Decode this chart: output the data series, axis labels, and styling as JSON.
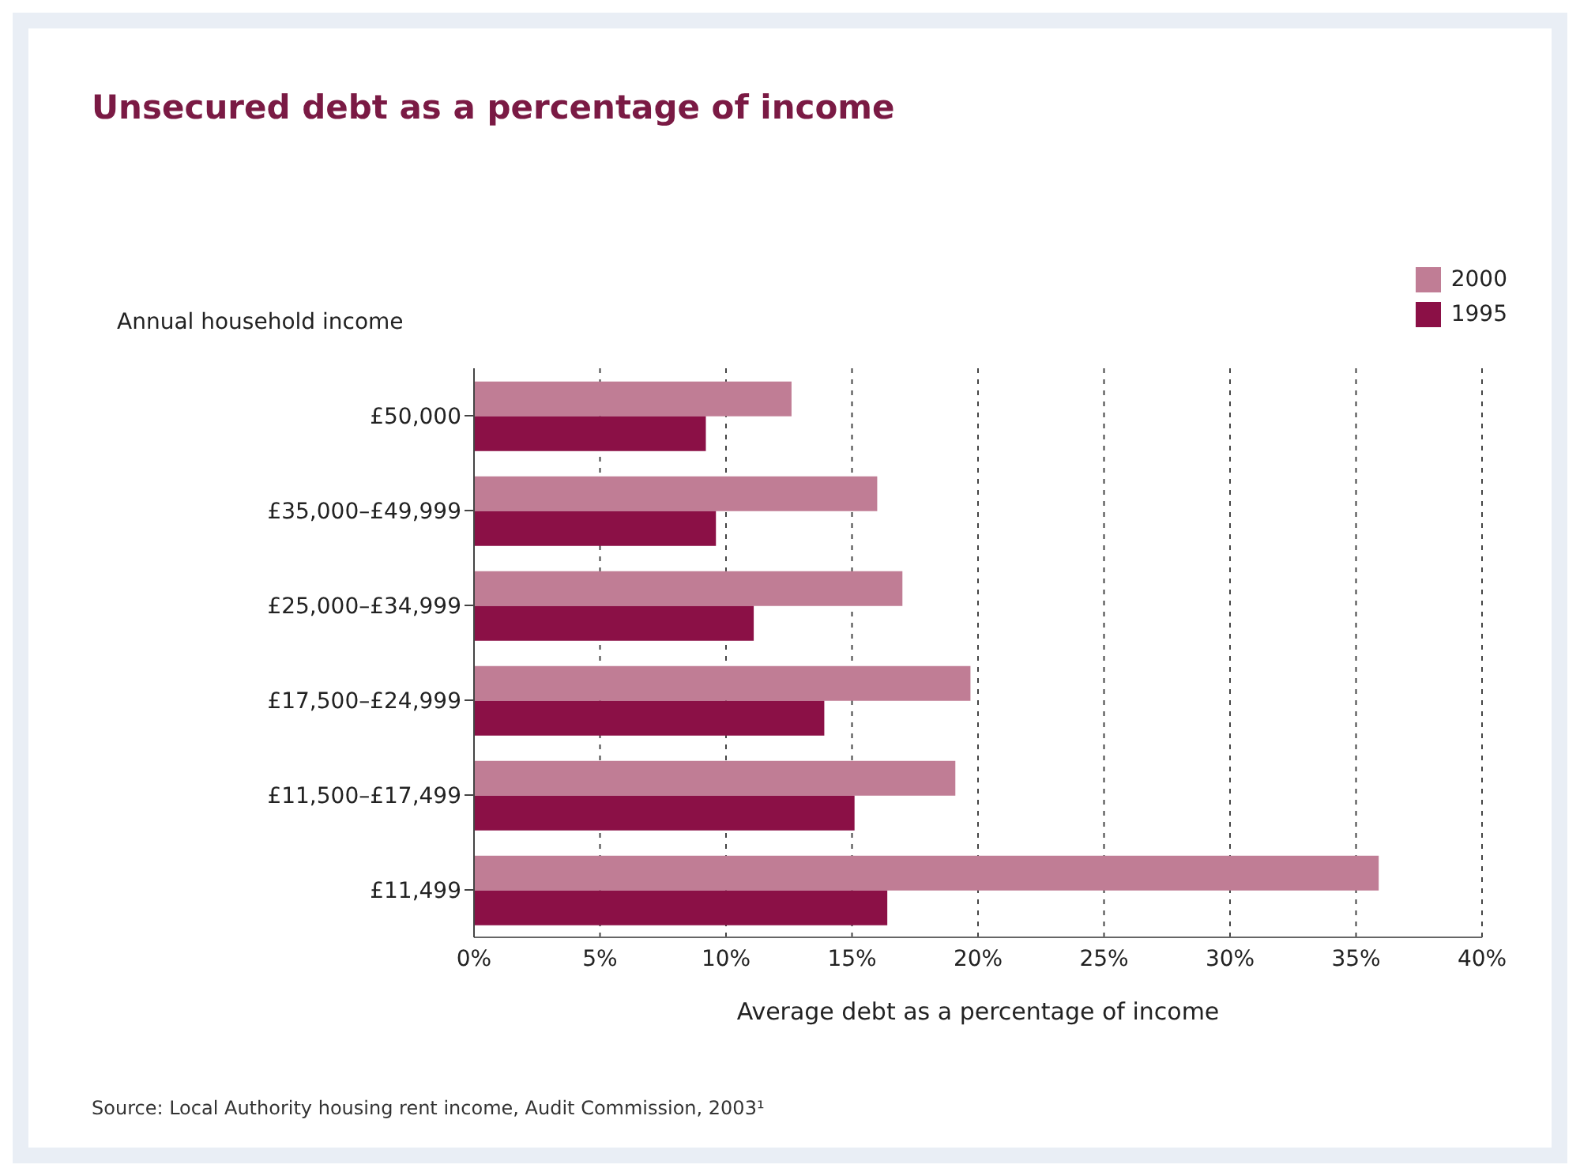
{
  "chart_data": {
    "type": "bar",
    "orientation": "horizontal",
    "title": "Unsecured debt as a percentage of income",
    "ylabel": "Annual household income",
    "xlabel": "Average debt as a percentage of income",
    "categories": [
      "£50,000",
      "£35,000–£49,999",
      "£25,000–£34,999",
      "£17,500–£24,999",
      "£11,500–£17,499",
      "£11,499"
    ],
    "series": [
      {
        "name": "2000",
        "color": "#c07d95",
        "values": [
          12.6,
          16.0,
          17.0,
          19.7,
          19.1,
          35.9
        ]
      },
      {
        "name": "1995",
        "color": "#8b1046",
        "values": [
          9.2,
          9.6,
          11.1,
          13.9,
          15.1,
          16.4
        ]
      }
    ],
    "xlim": [
      0,
      40
    ],
    "xticks": [
      {
        "value": 0,
        "label": "0%"
      },
      {
        "value": 5,
        "label": "5%"
      },
      {
        "value": 10,
        "label": "10%"
      },
      {
        "value": 15,
        "label": "15%"
      },
      {
        "value": 20,
        "label": "20%"
      },
      {
        "value": 25,
        "label": "25%"
      },
      {
        "value": 30,
        "label": "30%"
      },
      {
        "value": 35,
        "label": "35%"
      },
      {
        "value": 40,
        "label": "40%"
      }
    ],
    "grid": "x",
    "legend": "top right",
    "annotations": [
      "Source: Local Authority housing rent income, Audit Commission, 2003¹"
    ]
  }
}
